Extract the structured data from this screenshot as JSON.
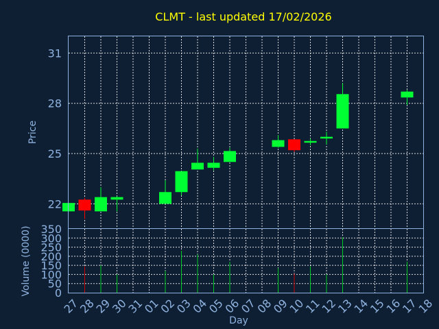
{
  "chart_data": {
    "type": "candlestick",
    "title": "CLMT - last updated 17/02/2026",
    "xlabel": "Day",
    "price_panel": {
      "ylabel": "Price",
      "yticks": [
        22,
        25,
        28,
        31
      ],
      "ylim": [
        20.5,
        32
      ],
      "grid": true
    },
    "volume_panel": {
      "ylabel": "Volume (0000)",
      "yticks": [
        0,
        50,
        100,
        150,
        200,
        250,
        300,
        350
      ],
      "ylim": [
        0,
        350
      ],
      "grid": true
    },
    "x_tick_labels": [
      "27",
      "28",
      "29",
      "30",
      "31",
      "01",
      "02",
      "03",
      "04",
      "05",
      "06",
      "07",
      "08",
      "09",
      "10",
      "11",
      "12",
      "13",
      "14",
      "15",
      "16",
      "17",
      "18"
    ],
    "colors": {
      "up": "#00ff33",
      "down": "#ff0000",
      "background": "#0f1f33",
      "title": "#ffff00",
      "axis": "#8fb3e0",
      "grid": "#ffffff"
    },
    "candles": [
      {
        "day": "27",
        "open": 21.55,
        "high": 22.05,
        "low": 21.55,
        "close": 22.05,
        "volume": 0
      },
      {
        "day": "28",
        "open": 22.25,
        "high": 22.35,
        "low": 21.1,
        "close": 21.6,
        "volume": 145
      },
      {
        "day": "29",
        "open": 21.55,
        "high": 23.0,
        "low": 21.55,
        "close": 22.4,
        "volume": 150
      },
      {
        "day": "30",
        "open": 22.25,
        "high": 22.45,
        "low": 21.55,
        "close": 22.4,
        "volume": 100
      },
      {
        "day": "02",
        "open": 22.0,
        "high": 23.4,
        "low": 22.0,
        "close": 22.7,
        "volume": 120
      },
      {
        "day": "03",
        "open": 22.7,
        "high": 23.95,
        "low": 22.5,
        "close": 23.95,
        "volume": 230
      },
      {
        "day": "04",
        "open": 24.05,
        "high": 25.3,
        "low": 24.05,
        "close": 24.45,
        "volume": 210
      },
      {
        "day": "05",
        "open": 24.15,
        "high": 24.8,
        "low": 24.0,
        "close": 24.45,
        "volume": 100
      },
      {
        "day": "06",
        "open": 24.5,
        "high": 25.35,
        "low": 24.5,
        "close": 25.15,
        "volume": 170
      },
      {
        "day": "09",
        "open": 25.4,
        "high": 26.1,
        "low": 25.35,
        "close": 25.8,
        "volume": 135
      },
      {
        "day": "10",
        "open": 25.85,
        "high": 25.85,
        "low": 25.1,
        "close": 25.2,
        "volume": 105
      },
      {
        "day": "11",
        "open": 25.65,
        "high": 25.9,
        "low": 25.5,
        "close": 25.75,
        "volume": 145
      },
      {
        "day": "12",
        "open": 25.9,
        "high": 26.3,
        "low": 25.55,
        "close": 26.0,
        "volume": 100
      },
      {
        "day": "13",
        "open": 26.5,
        "high": 29.2,
        "low": 26.5,
        "close": 28.55,
        "volume": 305
      },
      {
        "day": "17",
        "open": 28.35,
        "high": 28.8,
        "low": 27.9,
        "close": 28.7,
        "volume": 170
      }
    ]
  }
}
